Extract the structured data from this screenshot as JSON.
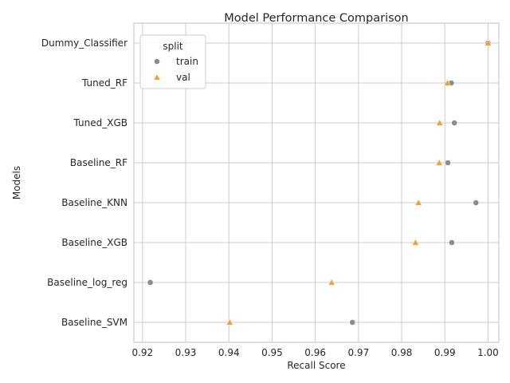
{
  "chart_data": {
    "type": "scatter",
    "title": "Model Performance Comparison",
    "xlabel": "Recall Score",
    "ylabel": "Models",
    "xlim": [
      0.918,
      1.0025
    ],
    "xticks": [
      0.92,
      0.93,
      0.94,
      0.95,
      0.96,
      0.97,
      0.98,
      0.99,
      1.0
    ],
    "xtick_labels": [
      "0.92",
      "0.93",
      "0.94",
      "0.95",
      "0.96",
      "0.97",
      "0.98",
      "0.99",
      "1.00"
    ],
    "categories": [
      "Dummy_Classifier",
      "Tuned_RF",
      "Tuned_XGB",
      "Baseline_RF",
      "Baseline_KNN",
      "Baseline_XGB",
      "Baseline_log_reg",
      "Baseline_SVM"
    ],
    "grid": true,
    "legend": {
      "title": "split",
      "position": "top-left"
    },
    "series": [
      {
        "name": "train",
        "marker": "circle",
        "color": "#8c8c8c",
        "values": [
          1.0,
          0.9915,
          0.9922,
          0.9907,
          0.9972,
          0.9916,
          0.9218,
          0.9686
        ]
      },
      {
        "name": "val",
        "marker": "triangle",
        "color": "#f5a030",
        "values": [
          1.0,
          0.9906,
          0.9888,
          0.9887,
          0.9839,
          0.9832,
          0.9638,
          0.9402
        ]
      }
    ]
  }
}
